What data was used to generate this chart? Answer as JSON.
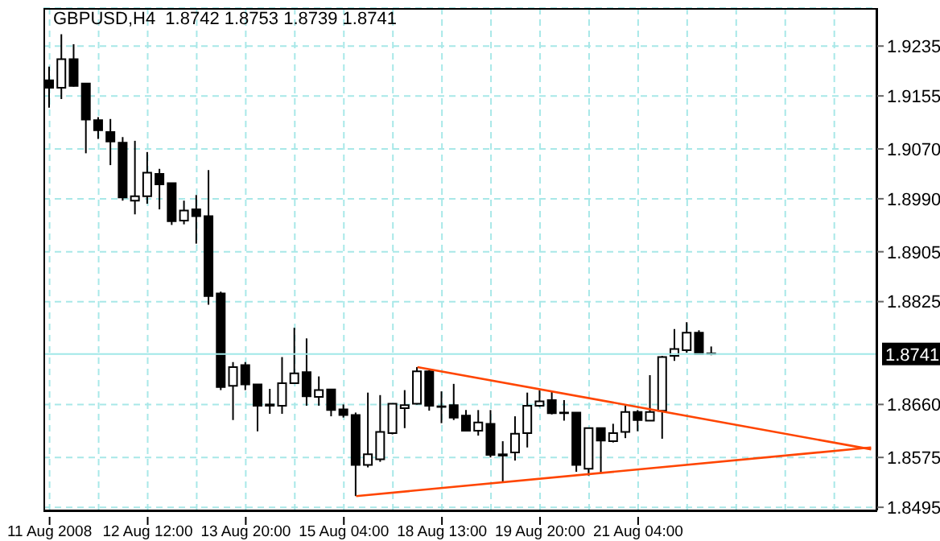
{
  "chart_data": {
    "type": "candlestick",
    "title": "GBPUSD,H4  1.8742 1.8753 1.8739 1.8741",
    "categories": [
      "11 Aug 2008",
      null,
      null,
      null,
      null,
      null,
      null,
      null,
      "12 Aug 12:00",
      null,
      null,
      null,
      null,
      null,
      null,
      null,
      "13 Aug 20:00",
      null,
      null,
      null,
      null,
      null,
      null,
      null,
      "15 Aug 04:00",
      null,
      null,
      null,
      null,
      null,
      null,
      null,
      "18 Aug 13:00",
      null,
      null,
      null,
      null,
      null,
      null,
      null,
      "19 Aug 20:00",
      null,
      null,
      null,
      null,
      null,
      null,
      null,
      "21 Aug 04:00",
      null,
      null,
      null,
      null,
      null,
      null,
      null,
      null,
      null,
      null,
      null,
      null,
      null,
      null,
      null,
      null,
      null,
      null,
      null
    ],
    "ohlc": [
      [
        1.918,
        1.9202,
        1.9136,
        1.9168
      ],
      [
        1.9168,
        1.9254,
        1.915,
        1.9214
      ],
      [
        1.9214,
        1.9238,
        1.917,
        1.9171
      ],
      [
        1.9175,
        1.9175,
        1.9063,
        1.9117
      ],
      [
        1.9116,
        1.9121,
        1.9086,
        1.91
      ],
      [
        1.9097,
        1.9118,
        1.9044,
        1.9082
      ],
      [
        1.908,
        1.9089,
        1.8987,
        1.8992
      ],
      [
        1.8987,
        1.9083,
        1.8965,
        1.8994
      ],
      [
        1.8994,
        1.9065,
        1.8982,
        1.9032
      ],
      [
        1.903,
        1.9038,
        1.8973,
        1.9013
      ],
      [
        1.9015,
        1.9015,
        1.8948,
        1.8954
      ],
      [
        1.8955,
        1.8987,
        1.8949,
        1.8971
      ],
      [
        1.8973,
        1.8996,
        1.8918,
        1.8962
      ],
      [
        1.8962,
        1.9036,
        1.882,
        1.8834
      ],
      [
        1.8838,
        1.8841,
        1.8683,
        1.8688
      ],
      [
        1.869,
        1.8728,
        1.8635,
        1.872
      ],
      [
        1.8723,
        1.8728,
        1.8683,
        1.8692
      ],
      [
        1.8692,
        1.8692,
        1.8617,
        1.8658
      ],
      [
        1.8658,
        1.8685,
        1.8645,
        1.866
      ],
      [
        1.8658,
        1.8736,
        1.8645,
        1.8694
      ],
      [
        1.8694,
        1.8783,
        1.8694,
        1.871
      ],
      [
        1.8712,
        1.8766,
        1.8658,
        1.8673
      ],
      [
        1.8672,
        1.8705,
        1.8658,
        1.8683
      ],
      [
        1.8684,
        1.8684,
        1.8641,
        1.8651
      ],
      [
        1.8652,
        1.866,
        1.8639,
        1.8643
      ],
      [
        1.8643,
        1.8647,
        1.8513,
        1.8563
      ],
      [
        1.8563,
        1.8679,
        1.8559,
        1.858
      ],
      [
        1.8572,
        1.8675,
        1.8568,
        1.8616
      ],
      [
        1.8614,
        1.8661,
        1.8612,
        1.8661
      ],
      [
        1.8654,
        1.8683,
        1.8622,
        1.8659
      ],
      [
        1.8661,
        1.872,
        1.866,
        1.8713
      ],
      [
        1.8713,
        1.8715,
        1.865,
        1.8658
      ],
      [
        1.8656,
        1.8681,
        1.863,
        1.8657
      ],
      [
        1.8659,
        1.8693,
        1.8635,
        1.8639
      ],
      [
        1.8642,
        1.8651,
        1.8618,
        1.8618
      ],
      [
        1.8618,
        1.8651,
        1.861,
        1.8631
      ],
      [
        1.8629,
        1.8651,
        1.8575,
        1.8579
      ],
      [
        1.858,
        1.8601,
        1.8536,
        1.8578
      ],
      [
        1.8583,
        1.8641,
        1.857,
        1.8613
      ],
      [
        1.8614,
        1.8679,
        1.8591,
        1.8658
      ],
      [
        1.8658,
        1.8683,
        1.8656,
        1.8665
      ],
      [
        1.8667,
        1.868,
        1.8644,
        1.8646
      ],
      [
        1.8646,
        1.8667,
        1.8634,
        1.8647
      ],
      [
        1.8647,
        1.8647,
        1.8552,
        1.8563
      ],
      [
        1.8557,
        1.8622,
        1.8546,
        1.8622
      ],
      [
        1.8622,
        1.8622,
        1.855,
        1.8602
      ],
      [
        1.8601,
        1.8629,
        1.8599,
        1.8614
      ],
      [
        1.8616,
        1.8658,
        1.8606,
        1.8648
      ],
      [
        1.8648,
        1.8651,
        1.8617,
        1.8635
      ],
      [
        1.8634,
        1.8707,
        1.8634,
        1.8648
      ],
      [
        1.865,
        1.8738,
        1.8605,
        1.8736
      ],
      [
        1.8738,
        1.8781,
        1.873,
        1.8749
      ],
      [
        1.8747,
        1.8792,
        1.8743,
        1.8775
      ],
      [
        1.8775,
        1.8779,
        1.8741,
        1.8741
      ],
      [
        1.8742,
        1.8753,
        1.8739,
        1.8741
      ],
      null,
      null,
      null,
      null,
      null,
      null,
      null,
      null,
      null,
      null,
      null,
      null,
      null
    ],
    "series": [
      {
        "type": "line",
        "color": "#ff4500",
        "values": [
          null,
          null,
          null,
          null,
          null,
          null,
          null,
          null,
          null,
          null,
          null,
          null,
          null,
          null,
          null,
          null,
          null,
          null,
          null,
          null,
          null,
          null,
          null,
          null,
          null,
          null,
          null,
          null,
          null,
          null,
          1.872,
          null,
          null,
          null,
          null,
          null,
          null,
          null,
          null,
          null,
          null,
          null,
          null,
          null,
          null,
          null,
          null,
          null,
          null,
          null,
          null,
          null,
          null,
          null,
          null,
          null,
          null,
          null,
          null,
          null,
          null,
          null,
          null,
          null,
          null,
          null,
          null,
          1.8588
        ]
      },
      {
        "type": "line",
        "color": "#ff4500",
        "values": [
          null,
          null,
          null,
          null,
          null,
          null,
          null,
          null,
          null,
          null,
          null,
          null,
          null,
          null,
          null,
          null,
          null,
          null,
          null,
          null,
          null,
          null,
          null,
          null,
          null,
          1.8513,
          null,
          null,
          null,
          null,
          null,
          null,
          null,
          null,
          null,
          null,
          null,
          null,
          null,
          null,
          null,
          null,
          null,
          null,
          null,
          null,
          null,
          null,
          null,
          null,
          null,
          null,
          null,
          null,
          null,
          null,
          null,
          null,
          null,
          null,
          null,
          null,
          null,
          null,
          null,
          null,
          null,
          1.8591
        ]
      }
    ],
    "ylim": [
      1.849,
      1.9296
    ],
    "yticks": [
      1.9235,
      1.9155,
      {
        "value": 1.907,
        "label": "1.9070"
      },
      {
        "value": 1.899,
        "label": "1.8990"
      },
      1.8905,
      1.8825,
      {
        "value": 1.866,
        "label": "1.8660"
      },
      1.8575,
      1.8495
    ],
    "ref_lines": [
      {
        "axis": "y",
        "value": 1.8741,
        "label": "1.8741",
        "color": "#a0e8e8"
      }
    ],
    "grid": true,
    "marker": "none",
    "line_style": "solid"
  }
}
